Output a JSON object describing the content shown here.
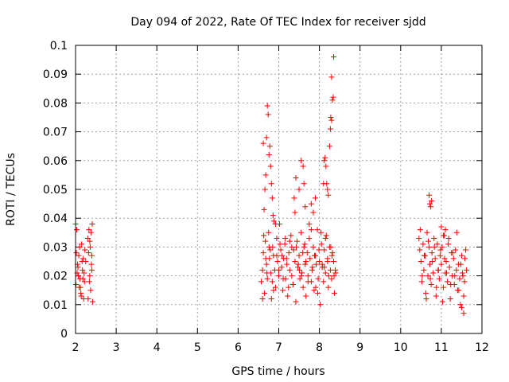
{
  "chart_data": {
    "type": "scatter",
    "title": "Day 094 of 2022, Rate Of TEC Index for receiver sjdd",
    "xlabel": "GPS time / hours",
    "ylabel": "ROTI / TECUs",
    "xlim": [
      2,
      12
    ],
    "ylim": [
      0,
      0.1
    ],
    "x_ticks": [
      "2",
      "3",
      "4",
      "5",
      "6",
      "7",
      "8",
      "9",
      "10",
      "11",
      "12"
    ],
    "y_ticks": [
      "0",
      "0.01",
      "0.02",
      "0.03",
      "0.04",
      "0.05",
      "0.06",
      "0.07",
      "0.08",
      "0.09",
      "0.1"
    ],
    "grid": true,
    "marker": "+",
    "marker_color": "#ff0000",
    "series": [
      {
        "name": "ROTI",
        "x": [
          2.0,
          2.02,
          2.05,
          2.07,
          2.1,
          2.12,
          2.15,
          2.17,
          2.2,
          2.22,
          2.25,
          2.3,
          2.33,
          2.35,
          2.37,
          2.4,
          2.42,
          2.04,
          2.08,
          2.13,
          2.18,
          2.32,
          2.36,
          2.39,
          2.03,
          2.09,
          2.14,
          2.19,
          2.34,
          2.38,
          2.06,
          2.11,
          2.16,
          2.21,
          2.31,
          2.41,
          2.01,
          2.23,
          2.35,
          2.4,
          6.57,
          6.6,
          6.62,
          6.65,
          6.67,
          6.7,
          6.72,
          6.75,
          6.77,
          6.8,
          6.82,
          6.85,
          6.87,
          6.9,
          6.92,
          6.95,
          6.97,
          7.0,
          7.02,
          7.05,
          7.07,
          7.1,
          7.12,
          7.15,
          7.17,
          7.2,
          7.22,
          7.25,
          7.27,
          7.3,
          7.32,
          7.35,
          7.37,
          7.4,
          7.42,
          7.45,
          7.47,
          7.5,
          7.52,
          7.55,
          7.57,
          7.6,
          7.62,
          7.65,
          7.67,
          7.7,
          7.72,
          7.75,
          7.77,
          7.8,
          7.82,
          7.85,
          7.87,
          7.9,
          7.92,
          7.95,
          7.97,
          8.0,
          8.02,
          8.05,
          8.07,
          8.1,
          8.12,
          8.15,
          8.17,
          8.2,
          8.22,
          8.25,
          8.27,
          8.3,
          8.32,
          8.35,
          8.37,
          8.4,
          6.6,
          6.68,
          6.76,
          6.84,
          6.92,
          7.0,
          7.08,
          7.16,
          7.24,
          7.32,
          7.4,
          7.48,
          7.56,
          7.64,
          7.72,
          7.8,
          7.88,
          7.96,
          8.04,
          8.12,
          8.2,
          8.28,
          8.36,
          6.63,
          6.71,
          6.79,
          6.87,
          6.95,
          7.03,
          7.11,
          7.19,
          7.27,
          7.35,
          7.43,
          7.51,
          7.59,
          7.67,
          7.75,
          7.83,
          7.91,
          7.99,
          8.07,
          8.15,
          8.23,
          8.31,
          8.39,
          6.62,
          6.64,
          6.66,
          6.68,
          6.7,
          6.72,
          6.74,
          6.76,
          6.78,
          6.8,
          6.82,
          6.84,
          6.86,
          6.88,
          7.38,
          7.42,
          7.5,
          7.55,
          7.6,
          7.62,
          7.65,
          7.8,
          7.85,
          7.9,
          8.1,
          8.12,
          8.14,
          8.16,
          8.18,
          8.2,
          8.22,
          8.25,
          8.27,
          8.3,
          8.32,
          8.34,
          8.35,
          8.3,
          8.28,
          10.45,
          10.47,
          10.5,
          10.52,
          10.55,
          10.57,
          10.6,
          10.62,
          10.65,
          10.67,
          10.7,
          10.72,
          10.75,
          10.77,
          10.8,
          10.82,
          10.85,
          10.87,
          10.9,
          10.92,
          10.95,
          10.97,
          11.0,
          11.02,
          11.05,
          11.07,
          11.1,
          11.12,
          11.15,
          11.17,
          11.2,
          11.22,
          11.25,
          11.27,
          11.3,
          11.32,
          11.35,
          11.37,
          11.4,
          11.42,
          11.45,
          11.47,
          11.5,
          11.52,
          11.55,
          11.57,
          11.6,
          11.62,
          10.48,
          10.53,
          10.58,
          10.63,
          10.68,
          10.73,
          10.78,
          10.83,
          10.88,
          10.93,
          10.98,
          11.03,
          11.08,
          11.13,
          11.18,
          11.23,
          11.28,
          11.33,
          11.38,
          11.43,
          11.48,
          11.53,
          11.58,
          10.7,
          10.72,
          10.74,
          10.76,
          11.0,
          11.05,
          11.1,
          11.5,
          11.55
        ],
        "y": [
          0.038,
          0.028,
          0.024,
          0.02,
          0.03,
          0.016,
          0.031,
          0.022,
          0.012,
          0.018,
          0.025,
          0.033,
          0.036,
          0.02,
          0.015,
          0.022,
          0.011,
          0.021,
          0.027,
          0.014,
          0.019,
          0.028,
          0.03,
          0.024,
          0.036,
          0.016,
          0.013,
          0.026,
          0.018,
          0.035,
          0.023,
          0.019,
          0.025,
          0.021,
          0.012,
          0.038,
          0.017,
          0.029,
          0.032,
          0.027,
          0.018,
          0.022,
          0.028,
          0.014,
          0.032,
          0.024,
          0.019,
          0.035,
          0.026,
          0.021,
          0.012,
          0.03,
          0.027,
          0.022,
          0.016,
          0.033,
          0.025,
          0.02,
          0.038,
          0.029,
          0.023,
          0.015,
          0.026,
          0.031,
          0.019,
          0.024,
          0.013,
          0.028,
          0.022,
          0.034,
          0.02,
          0.017,
          0.029,
          0.025,
          0.011,
          0.032,
          0.023,
          0.027,
          0.019,
          0.035,
          0.021,
          0.016,
          0.03,
          0.024,
          0.013,
          0.028,
          0.02,
          0.033,
          0.026,
          0.018,
          0.022,
          0.03,
          0.015,
          0.027,
          0.024,
          0.036,
          0.019,
          0.025,
          0.01,
          0.031,
          0.023,
          0.018,
          0.029,
          0.021,
          0.034,
          0.026,
          0.016,
          0.03,
          0.022,
          0.019,
          0.028,
          0.025,
          0.014,
          0.021,
          0.012,
          0.026,
          0.03,
          0.018,
          0.038,
          0.022,
          0.027,
          0.033,
          0.016,
          0.03,
          0.042,
          0.024,
          0.02,
          0.031,
          0.018,
          0.036,
          0.027,
          0.014,
          0.035,
          0.023,
          0.025,
          0.03,
          0.02,
          0.034,
          0.021,
          0.029,
          0.015,
          0.027,
          0.031,
          0.019,
          0.026,
          0.032,
          0.017,
          0.03,
          0.022,
          0.028,
          0.025,
          0.038,
          0.023,
          0.016,
          0.029,
          0.024,
          0.033,
          0.02,
          0.027,
          0.022,
          0.066,
          0.043,
          0.05,
          0.055,
          0.068,
          0.079,
          0.076,
          0.062,
          0.065,
          0.058,
          0.052,
          0.047,
          0.041,
          0.039,
          0.047,
          0.054,
          0.05,
          0.06,
          0.058,
          0.052,
          0.044,
          0.045,
          0.042,
          0.047,
          0.052,
          0.06,
          0.061,
          0.058,
          0.052,
          0.05,
          0.048,
          0.065,
          0.071,
          0.074,
          0.081,
          0.082,
          0.096,
          0.089,
          0.075,
          0.033,
          0.029,
          0.025,
          0.018,
          0.031,
          0.022,
          0.027,
          0.014,
          0.035,
          0.02,
          0.03,
          0.024,
          0.017,
          0.028,
          0.021,
          0.033,
          0.026,
          0.013,
          0.031,
          0.022,
          0.019,
          0.027,
          0.024,
          0.03,
          0.016,
          0.034,
          0.021,
          0.025,
          0.018,
          0.031,
          0.023,
          0.012,
          0.028,
          0.02,
          0.026,
          0.017,
          0.029,
          0.022,
          0.015,
          0.024,
          0.019,
          0.01,
          0.027,
          0.021,
          0.013,
          0.018,
          0.029,
          0.022,
          0.036,
          0.02,
          0.027,
          0.012,
          0.032,
          0.019,
          0.025,
          0.03,
          0.016,
          0.022,
          0.029,
          0.011,
          0.026,
          0.021,
          0.033,
          0.017,
          0.028,
          0.02,
          0.035,
          0.015,
          0.024,
          0.02,
          0.026,
          0.048,
          0.045,
          0.044,
          0.046,
          0.037,
          0.034,
          0.036,
          0.009,
          0.007
        ]
      }
    ]
  }
}
